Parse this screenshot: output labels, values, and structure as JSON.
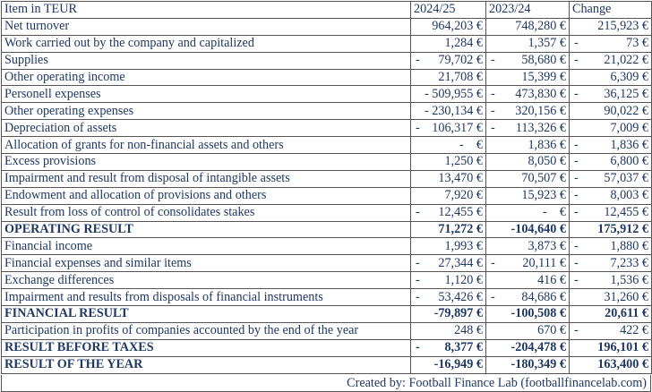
{
  "header": [
    "Item in TEUR",
    "2024/25",
    "2023/24",
    "Change"
  ],
  "rows": [
    {
      "label": "Net turnover",
      "bold": false,
      "cells": [
        [
          "",
          "964,203 €"
        ],
        [
          "",
          "748,280 €"
        ],
        [
          "",
          "215,923 €"
        ]
      ]
    },
    {
      "label": "Work carried out by the company and capitalized",
      "bold": false,
      "cells": [
        [
          "",
          "1,284 €"
        ],
        [
          "",
          "1,357 €"
        ],
        [
          "-",
          "73 €"
        ]
      ]
    },
    {
      "label": "Supplies",
      "bold": false,
      "cells": [
        [
          "-",
          "79,702 €"
        ],
        [
          "-",
          "58,680 €"
        ],
        [
          "-",
          "21,022 €"
        ]
      ]
    },
    {
      "label": "Other operating income",
      "bold": false,
      "cells": [
        [
          "",
          "21,708 €"
        ],
        [
          "",
          "15,399 €"
        ],
        [
          "",
          "6,309 €"
        ]
      ]
    },
    {
      "label": "Personell expenses",
      "bold": false,
      "cells": [
        [
          "",
          "- 509,955 €"
        ],
        [
          "-",
          "473,830 €"
        ],
        [
          "-",
          "36,125 €"
        ]
      ]
    },
    {
      "label": "Other operating expenses",
      "bold": false,
      "cells": [
        [
          "",
          "- 230,134 €"
        ],
        [
          "-",
          "320,156 €"
        ],
        [
          "",
          "90,022 €"
        ]
      ]
    },
    {
      "label": "Depreciation of assets",
      "bold": false,
      "cells": [
        [
          "-",
          "106,317 €"
        ],
        [
          "-",
          "113,326 €"
        ],
        [
          "",
          "7,009 €"
        ]
      ]
    },
    {
      "label": "Allocation of grants for non-financial assets and others",
      "bold": false,
      "cells": [
        [
          "",
          "-    €"
        ],
        [
          "",
          "1,836 €"
        ],
        [
          "-",
          "1,836 €"
        ]
      ]
    },
    {
      "label": "Excess provisions",
      "bold": false,
      "cells": [
        [
          "",
          "1,250 €"
        ],
        [
          "",
          "8,050 €"
        ],
        [
          "-",
          "6,800 €"
        ]
      ]
    },
    {
      "label": "Impairment and result from disposal of intangible assets",
      "bold": false,
      "cells": [
        [
          "",
          "13,470 €"
        ],
        [
          "",
          "70,507 €"
        ],
        [
          "-",
          "57,037 €"
        ]
      ]
    },
    {
      "label": "Endowment and allocation of provisions and others",
      "bold": false,
      "cells": [
        [
          "",
          "7,920 €"
        ],
        [
          "",
          "15,923 €"
        ],
        [
          "-",
          "8,003 €"
        ]
      ]
    },
    {
      "label": "Result from loss of control of consolidates stakes",
      "bold": false,
      "cells": [
        [
          "-",
          "12,455 €"
        ],
        [
          "",
          "-    €"
        ],
        [
          "-",
          "12,455 €"
        ]
      ]
    },
    {
      "label": "OPERATING RESULT",
      "bold": true,
      "cells": [
        [
          "",
          "71,272 €"
        ],
        [
          "",
          "-104,640 €"
        ],
        [
          "",
          "175,912 €"
        ]
      ]
    },
    {
      "label": "Financial income",
      "bold": false,
      "cells": [
        [
          "",
          "1,993 €"
        ],
        [
          "",
          "3,873 €"
        ],
        [
          "-",
          "1,880 €"
        ]
      ]
    },
    {
      "label": "Financial expenses and similar items",
      "bold": false,
      "cells": [
        [
          "-",
          "27,344 €"
        ],
        [
          "-",
          "20,111 €"
        ],
        [
          "-",
          "7,233 €"
        ]
      ]
    },
    {
      "label": "Exchange differences",
      "bold": false,
      "cells": [
        [
          "-",
          "1,120 €"
        ],
        [
          "",
          "416 €"
        ],
        [
          "-",
          "1,536 €"
        ]
      ]
    },
    {
      "label": "Impairment and results from disposals of financial instruments",
      "bold": false,
      "cells": [
        [
          "-",
          "53,426 €"
        ],
        [
          "-",
          "84,686 €"
        ],
        [
          "",
          "31,260 €"
        ]
      ]
    },
    {
      "label": "FINANCIAL RESULT",
      "bold": true,
      "cells": [
        [
          "",
          "-79,897 €"
        ],
        [
          "",
          "-100,508 €"
        ],
        [
          "",
          "20,611 €"
        ]
      ]
    },
    {
      "label": "Participation in profits of companies accounted by the end of the year",
      "bold": false,
      "cells": [
        [
          "",
          "248 €"
        ],
        [
          "",
          "670 €"
        ],
        [
          "-",
          "422 €"
        ]
      ]
    },
    {
      "label": "RESULT BEFORE TAXES",
      "bold": true,
      "cells": [
        [
          "-",
          "8,377 €"
        ],
        [
          "",
          "-204,478 €"
        ],
        [
          "",
          "196,101 €"
        ]
      ]
    },
    {
      "label": "RESULT OF THE YEAR",
      "bold": true,
      "cells": [
        [
          "",
          "-16,949 €"
        ],
        [
          "",
          "-180,349 €"
        ],
        [
          "",
          "163,400 €"
        ]
      ]
    }
  ],
  "footer": "Created by: Football Finance Lab (footballfinancelab.com)"
}
